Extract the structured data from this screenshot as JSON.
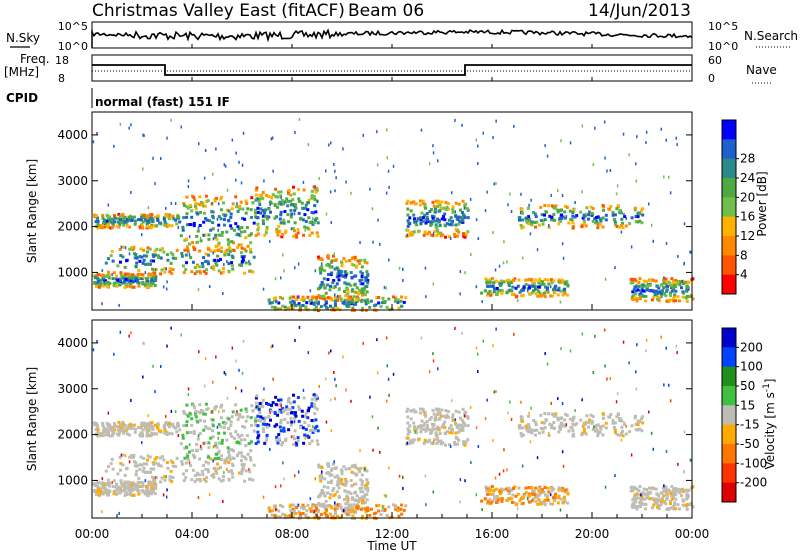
{
  "header": {
    "site": "Christmas Valley East (fitACF)",
    "beam": "Beam 06",
    "date": "14/Jun/2013"
  },
  "sky_panel": {
    "left_label": "N.Sky",
    "right_label": "N.Search",
    "left_ticks": [
      "10^5",
      "10^0"
    ],
    "right_ticks": [
      "10^5",
      "10^0"
    ]
  },
  "freq_panel": {
    "left_label_line1": "Freq.",
    "left_label_line2": "[MHz]",
    "left_ticks": [
      "18",
      "8"
    ],
    "right_label": "Nave",
    "right_ticks": [
      "60",
      "0"
    ]
  },
  "cpid": {
    "label": "CPID",
    "value": "normal (fast) 151 IF"
  },
  "chart_data": [
    {
      "type": "heatmap",
      "ylabel": "Slant Range [km]",
      "yticks": [
        1000,
        2000,
        3000,
        4000
      ],
      "ylim": [
        180,
        4500
      ],
      "colorbar": {
        "label": "Power [dB]",
        "ticks": [
          "4",
          "8",
          "12",
          "16",
          "20",
          "24",
          "28"
        ],
        "colors": [
          "#0000ff",
          "#1f5fd0",
          "#2a8a8a",
          "#4fa840",
          "#6fc04a",
          "#ffb200",
          "#ff8800",
          "#ff5500",
          "#ff0000"
        ]
      }
    },
    {
      "type": "heatmap",
      "ylabel": "Slant Range [km]",
      "yticks": [
        1000,
        2000,
        3000,
        4000
      ],
      "ylim": [
        180,
        4500
      ],
      "colorbar": {
        "label": "Velocity [m s",
        "label_sup": "-1",
        "label_close": "]",
        "ticks": [
          "200",
          "100",
          "50",
          "15",
          "-15",
          "-50",
          "-100",
          "-200"
        ],
        "colors": [
          "#0000cc",
          "#0044ff",
          "#1f8f1f",
          "#40c040",
          "#bdbdb5",
          "#ffaa00",
          "#ff7700",
          "#ff3300",
          "#dd0000"
        ]
      }
    }
  ],
  "xaxis": {
    "label": "Time UT",
    "ticks": [
      "00:00",
      "04:00",
      "08:00",
      "12:00",
      "16:00",
      "20:00",
      "00:00"
    ]
  }
}
